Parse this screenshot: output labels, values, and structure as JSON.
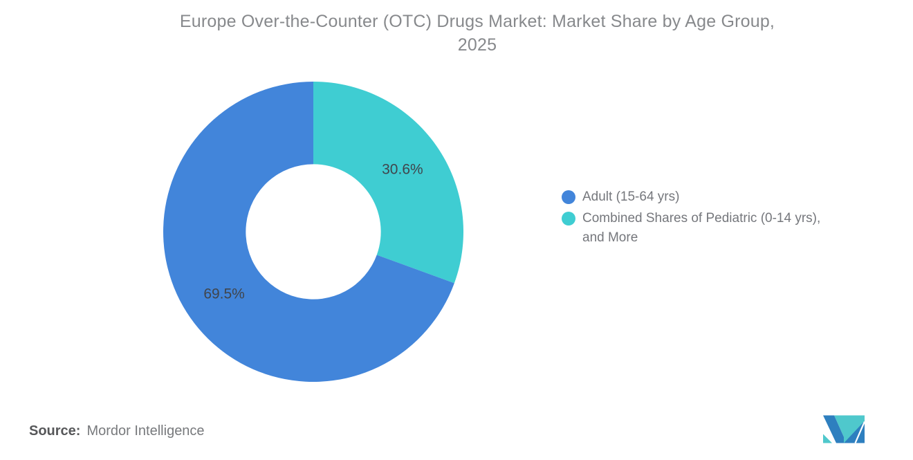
{
  "title": {
    "line1": "Europe Over-the-Counter (OTC) Drugs Market: Market Share by Age Group,",
    "line2": "2025"
  },
  "chart_data": {
    "type": "pie",
    "subtype": "donut",
    "title": "Europe Over-the-Counter (OTC) Drugs Market: Market Share by Age Group, 2025",
    "slices": [
      {
        "label": "Adult (15-64 yrs)",
        "value": 69.5,
        "data_label": "69.5%",
        "color": "#4285DA"
      },
      {
        "label": "Combined Shares of Pediatric (0-14 yrs), and More",
        "value": 30.6,
        "data_label": "30.6%",
        "color": "#3FCDD2"
      }
    ],
    "start_angle_deg": 0,
    "direction": "clockwise",
    "draw_order": [
      1,
      0
    ],
    "inner_radius_ratio": 0.45,
    "data_label_color": "#40454C",
    "legend_position": "right",
    "background": "#FFFFFF"
  },
  "legend": {
    "items": [
      {
        "label": "Adult (15-64 yrs)"
      },
      {
        "label": "Combined Shares of Pediatric (0-14 yrs), and More"
      }
    ]
  },
  "source": {
    "label": "Source:",
    "value": "Mordor Intelligence"
  },
  "logo": {
    "name": "mordor-intelligence-logo",
    "colors": {
      "blue": "#2E7FBF",
      "teal": "#4FC8CC"
    }
  }
}
